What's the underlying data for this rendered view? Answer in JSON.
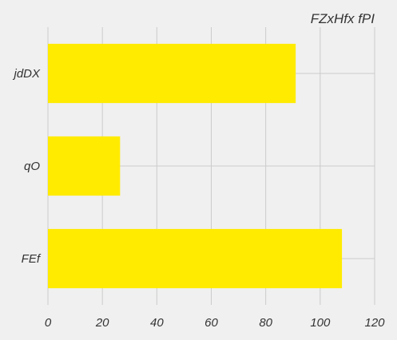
{
  "chart_data": {
    "type": "bar",
    "orientation": "horizontal",
    "title": "FZxHfx fPI",
    "xlabel": "",
    "ylabel": "",
    "categories": [
      "jdDX",
      "qO",
      "FEf"
    ],
    "values": [
      91,
      26.5,
      108
    ],
    "xlim": [
      0,
      120
    ],
    "xticks": [
      0,
      20,
      40,
      60,
      80,
      100,
      120
    ],
    "grid": true,
    "bar_color": "#ffeb00",
    "background": "#f0f0f0",
    "grid_color": "#cbcbcb"
  }
}
